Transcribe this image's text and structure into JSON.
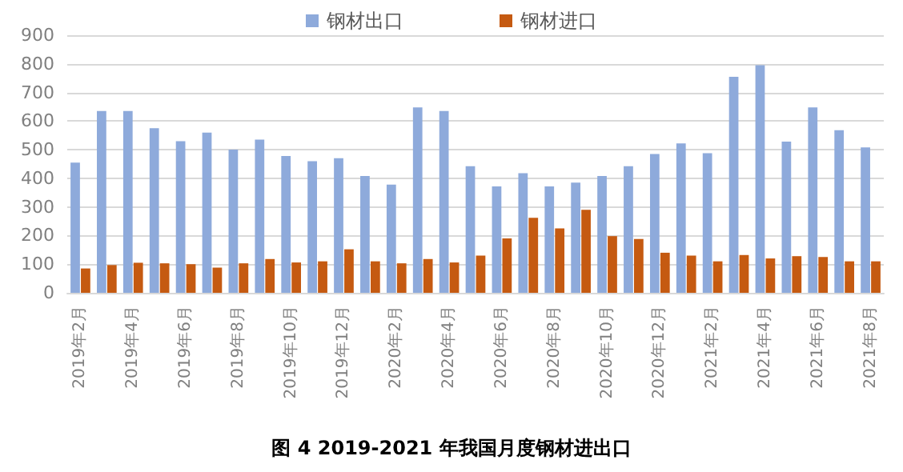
{
  "chart_data": {
    "type": "bar",
    "title": "图 4 2019-2021 年我国月度钢材进出口",
    "categories": [
      "2019年2月",
      null,
      "2019年4月",
      null,
      "2019年6月",
      null,
      "2019年8月",
      null,
      "2019年10月",
      null,
      "2019年12月",
      null,
      "2020年2月",
      null,
      "2020年4月",
      null,
      "2020年6月",
      null,
      "2020年8月",
      null,
      "2020年10月",
      null,
      "2020年12月",
      null,
      "2021年2月",
      null,
      "2021年4月",
      null,
      "2021年6月",
      null,
      "2021年8月"
    ],
    "series": [
      {
        "name": "钢材出口",
        "color": "#8eaadb",
        "values": [
          455,
          635,
          635,
          575,
          530,
          560,
          500,
          535,
          478,
          460,
          470,
          408,
          378,
          648,
          635,
          442,
          372,
          418,
          372,
          385,
          408,
          442,
          485,
          522,
          488,
          755,
          795,
          528,
          648,
          568,
          508
        ]
      },
      {
        "name": "钢材进口",
        "color": "#c55a11",
        "values": [
          85,
          97,
          105,
          103,
          100,
          88,
          103,
          118,
          106,
          110,
          152,
          110,
          103,
          118,
          106,
          130,
          190,
          262,
          225,
          290,
          198,
          188,
          140,
          130,
          110,
          132,
          120,
          128,
          125,
          110,
          110
        ]
      }
    ],
    "ylim": [
      0,
      900
    ],
    "yticks": [
      0,
      100,
      200,
      300,
      400,
      500,
      600,
      700,
      800,
      900
    ],
    "grid": "y",
    "legend": "top"
  }
}
